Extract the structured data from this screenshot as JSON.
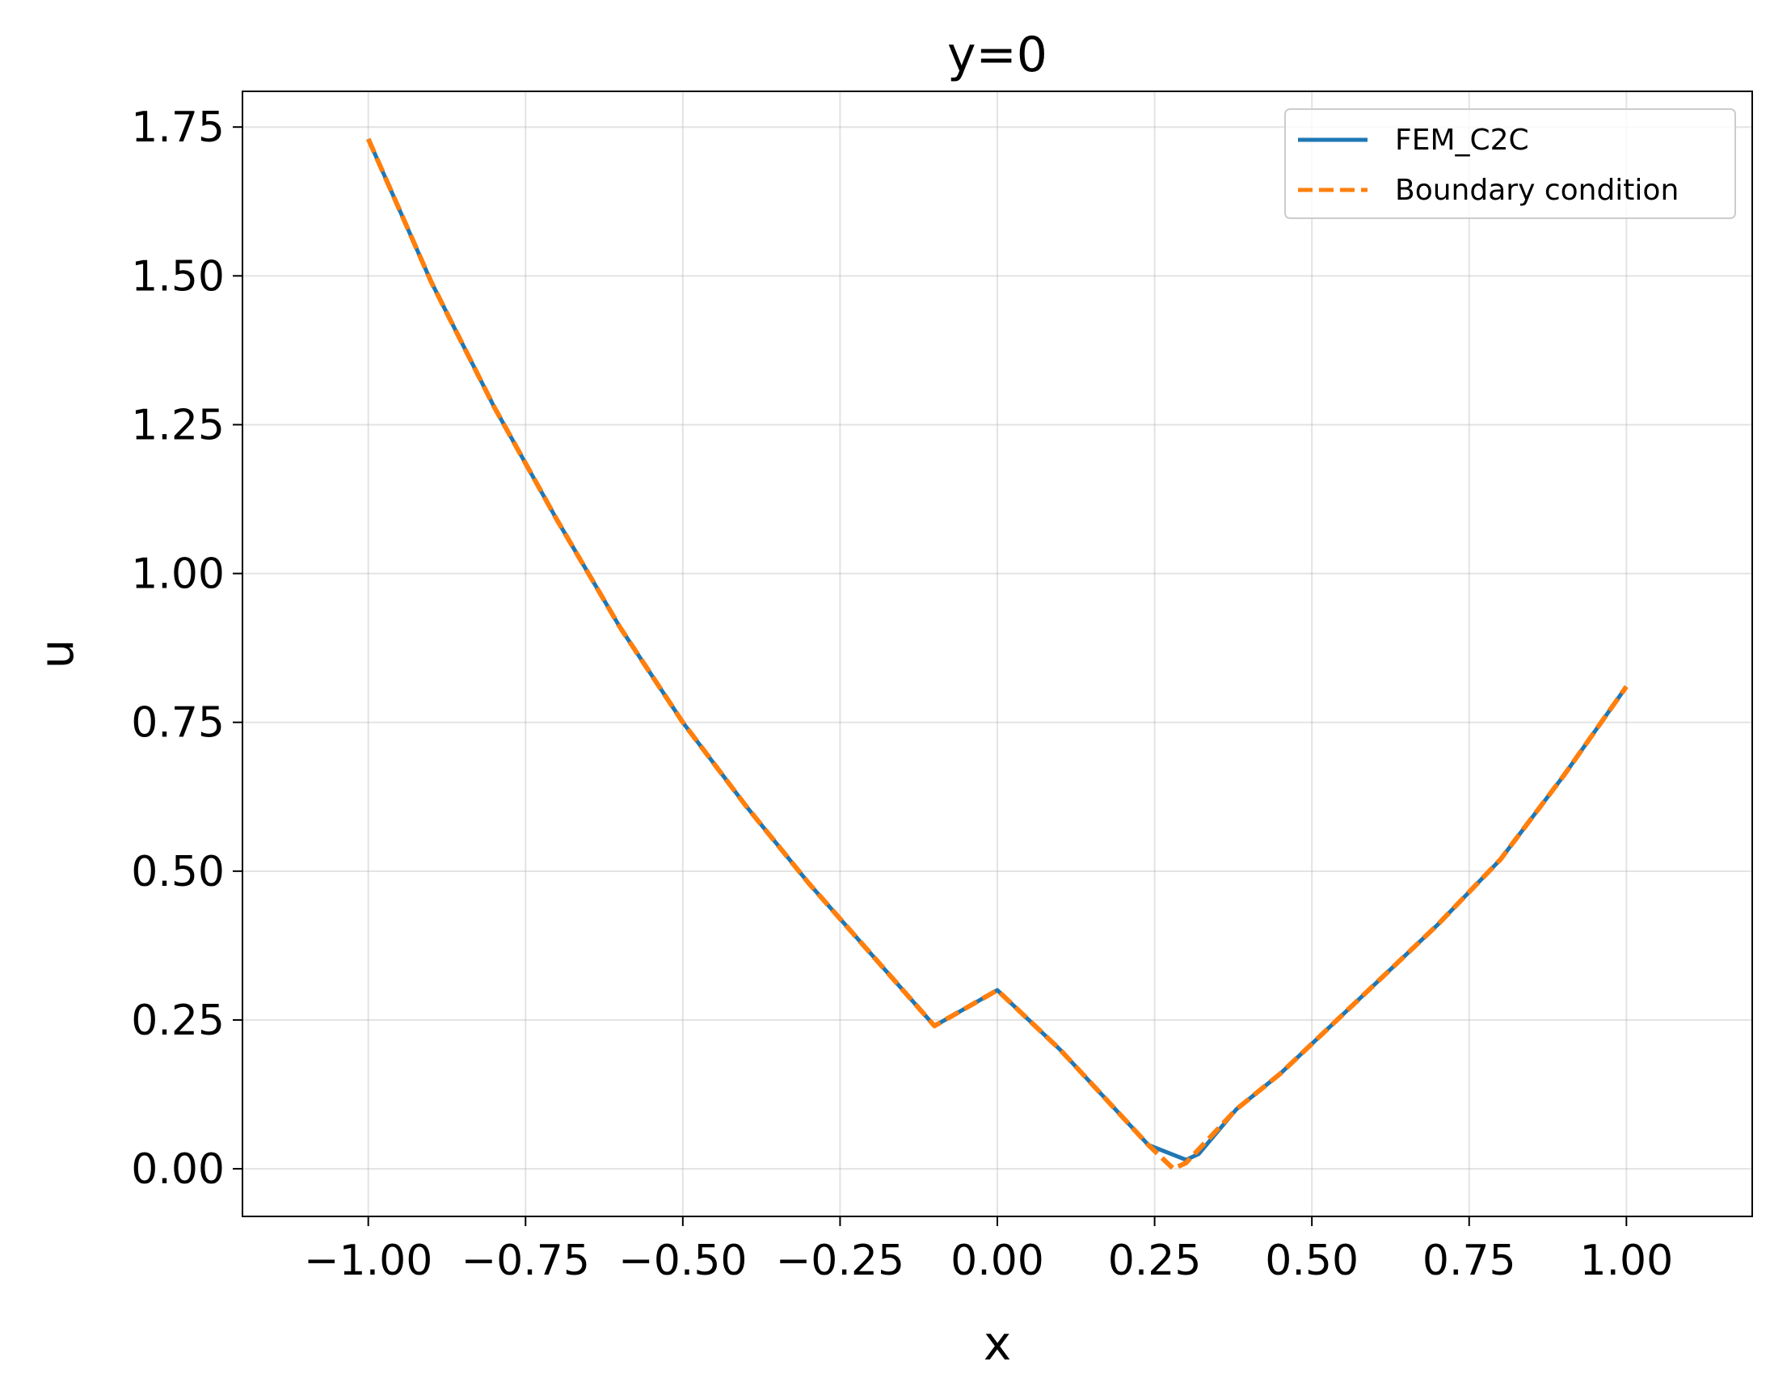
{
  "chart_data": {
    "type": "line",
    "title": "y=0",
    "xlabel": "x",
    "ylabel": "u",
    "xlim": [
      -1.2,
      1.2
    ],
    "ylim": [
      -0.08,
      1.81
    ],
    "xticks": [
      -1.0,
      -0.75,
      -0.5,
      -0.25,
      0.0,
      0.25,
      0.5,
      0.75,
      1.0
    ],
    "xtick_labels": [
      "−1.00",
      "−0.75",
      "−0.50",
      "−0.25",
      "0.00",
      "0.25",
      "0.50",
      "0.75",
      "1.00"
    ],
    "yticks": [
      0.0,
      0.25,
      0.5,
      0.75,
      1.0,
      1.25,
      1.5,
      1.75
    ],
    "ytick_labels": [
      "0.00",
      "0.25",
      "0.50",
      "0.75",
      "1.00",
      "1.25",
      "1.50",
      "1.75"
    ],
    "grid": true,
    "legend_position": "top-right",
    "series": [
      {
        "name": "FEM_C2C",
        "color": "#1f77b4",
        "style": "solid",
        "x": [
          -1.0,
          -0.9,
          -0.8,
          -0.7,
          -0.6,
          -0.5,
          -0.4,
          -0.3,
          -0.2,
          -0.1,
          0.0,
          0.1,
          0.17,
          0.24,
          0.3,
          0.32,
          0.38,
          0.45,
          0.5,
          0.6,
          0.7,
          0.8,
          0.9,
          1.0
        ],
        "y": [
          1.73,
          1.49,
          1.28,
          1.09,
          0.91,
          0.75,
          0.61,
          0.48,
          0.36,
          0.24,
          0.3,
          0.2,
          0.12,
          0.04,
          0.015,
          0.025,
          0.1,
          0.16,
          0.21,
          0.31,
          0.41,
          0.52,
          0.66,
          0.81
        ]
      },
      {
        "name": "Boundary condition",
        "color": "#ff7f0e",
        "style": "dashed",
        "x": [
          -1.0,
          -0.9,
          -0.8,
          -0.7,
          -0.6,
          -0.5,
          -0.4,
          -0.3,
          -0.2,
          -0.1,
          0.0,
          0.1,
          0.17,
          0.24,
          0.28,
          0.3,
          0.38,
          0.45,
          0.5,
          0.6,
          0.7,
          0.8,
          0.9,
          1.0
        ],
        "y": [
          1.73,
          1.49,
          1.28,
          1.09,
          0.91,
          0.75,
          0.61,
          0.48,
          0.36,
          0.24,
          0.3,
          0.2,
          0.12,
          0.04,
          0.0,
          0.01,
          0.1,
          0.16,
          0.21,
          0.31,
          0.41,
          0.52,
          0.66,
          0.81
        ]
      }
    ]
  }
}
